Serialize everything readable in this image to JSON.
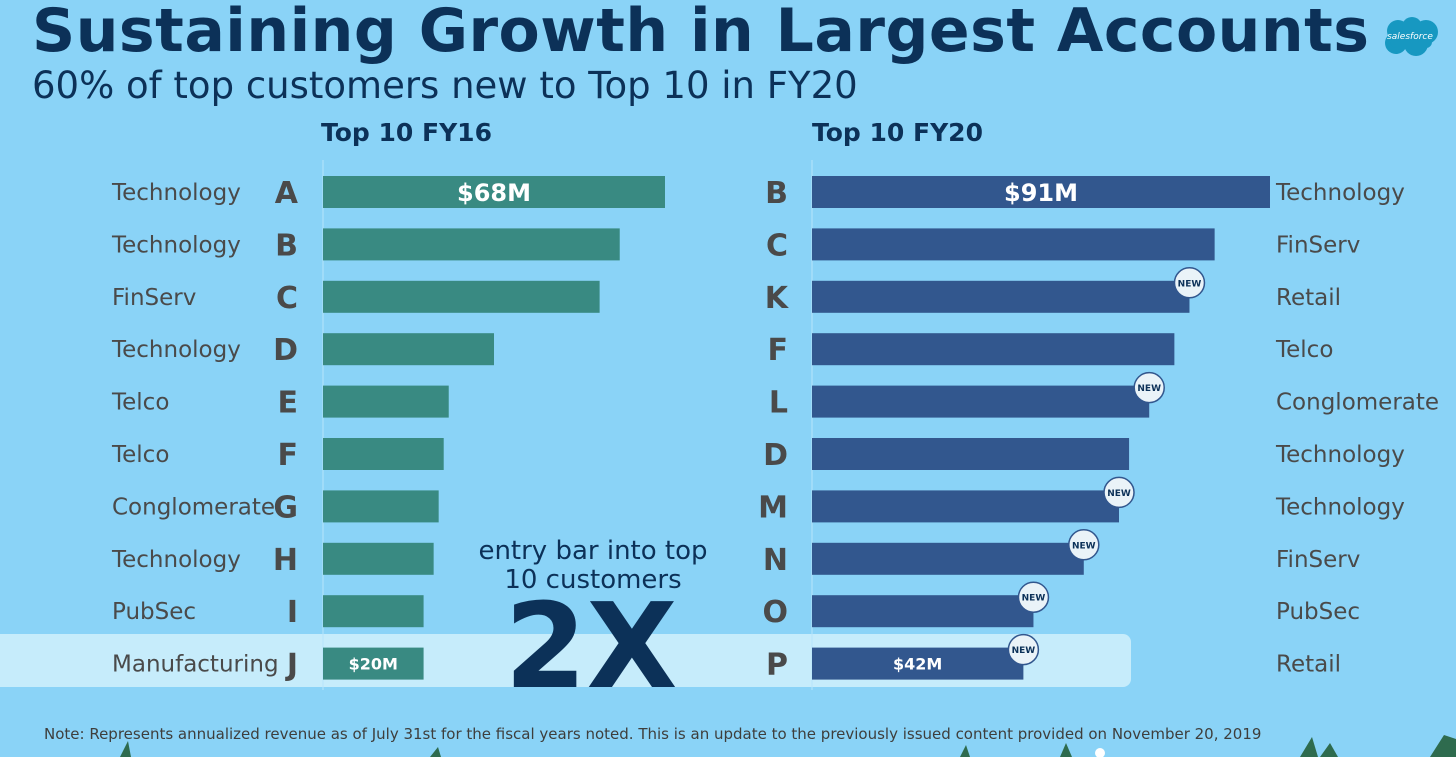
{
  "header": {
    "title": "Sustaining Growth in Largest Accounts",
    "subtitle": "60% of top customers new to Top 10 in FY20",
    "logo_text": "salesforce"
  },
  "callout": {
    "text_line1": "entry bar into top",
    "text_line2": "10 customers",
    "multiplier": "2X"
  },
  "note": "Note: Represents annualized revenue as of July 31st for the fiscal years noted. This is an update to the previously issued content provided on November 20, 2019",
  "colors": {
    "background": "#8ad3f7",
    "fy16_bar": "#398a82",
    "fy20_bar": "#32578e",
    "title": "#0c3158",
    "highlight": "#c6ecfb",
    "new_badge": "#eaf3f8"
  },
  "chart_data": [
    {
      "type": "bar",
      "orientation": "horizontal",
      "title": "Top 10 FY16",
      "unit": "$M",
      "categories": [
        "A",
        "B",
        "C",
        "D",
        "E",
        "F",
        "G",
        "H",
        "I",
        "J"
      ],
      "industries": [
        "Technology",
        "Technology",
        "FinServ",
        "Technology",
        "Telco",
        "Telco",
        "Conglomerate",
        "Technology",
        "PubSec",
        "Manufacturing"
      ],
      "values": [
        68,
        59,
        55,
        34,
        25,
        24,
        23,
        22,
        20,
        20
      ],
      "value_labels": [
        "$68M",
        "",
        "",
        "",
        "",
        "",
        "",
        "",
        "",
        "$20M"
      ],
      "new_flags": [
        false,
        false,
        false,
        false,
        false,
        false,
        false,
        false,
        false,
        false
      ],
      "xlim": [
        0,
        68
      ]
    },
    {
      "type": "bar",
      "orientation": "horizontal",
      "title": "Top 10 FY20",
      "unit": "$M",
      "categories": [
        "B",
        "C",
        "K",
        "F",
        "L",
        "D",
        "M",
        "N",
        "O",
        "P"
      ],
      "industries": [
        "Technology",
        "FinServ",
        "Retail",
        "Telco",
        "Conglomerate",
        "Technology",
        "Technology",
        "FinServ",
        "PubSec",
        "Retail"
      ],
      "values": [
        91,
        80,
        75,
        72,
        67,
        63,
        61,
        54,
        44,
        42
      ],
      "value_labels": [
        "$91M",
        "",
        "",
        "",
        "",
        "",
        "",
        "",
        "",
        "$42M"
      ],
      "new_flags": [
        false,
        false,
        true,
        false,
        true,
        false,
        true,
        true,
        true,
        true
      ],
      "badge_label": "NEW",
      "xlim": [
        0,
        91
      ]
    }
  ]
}
